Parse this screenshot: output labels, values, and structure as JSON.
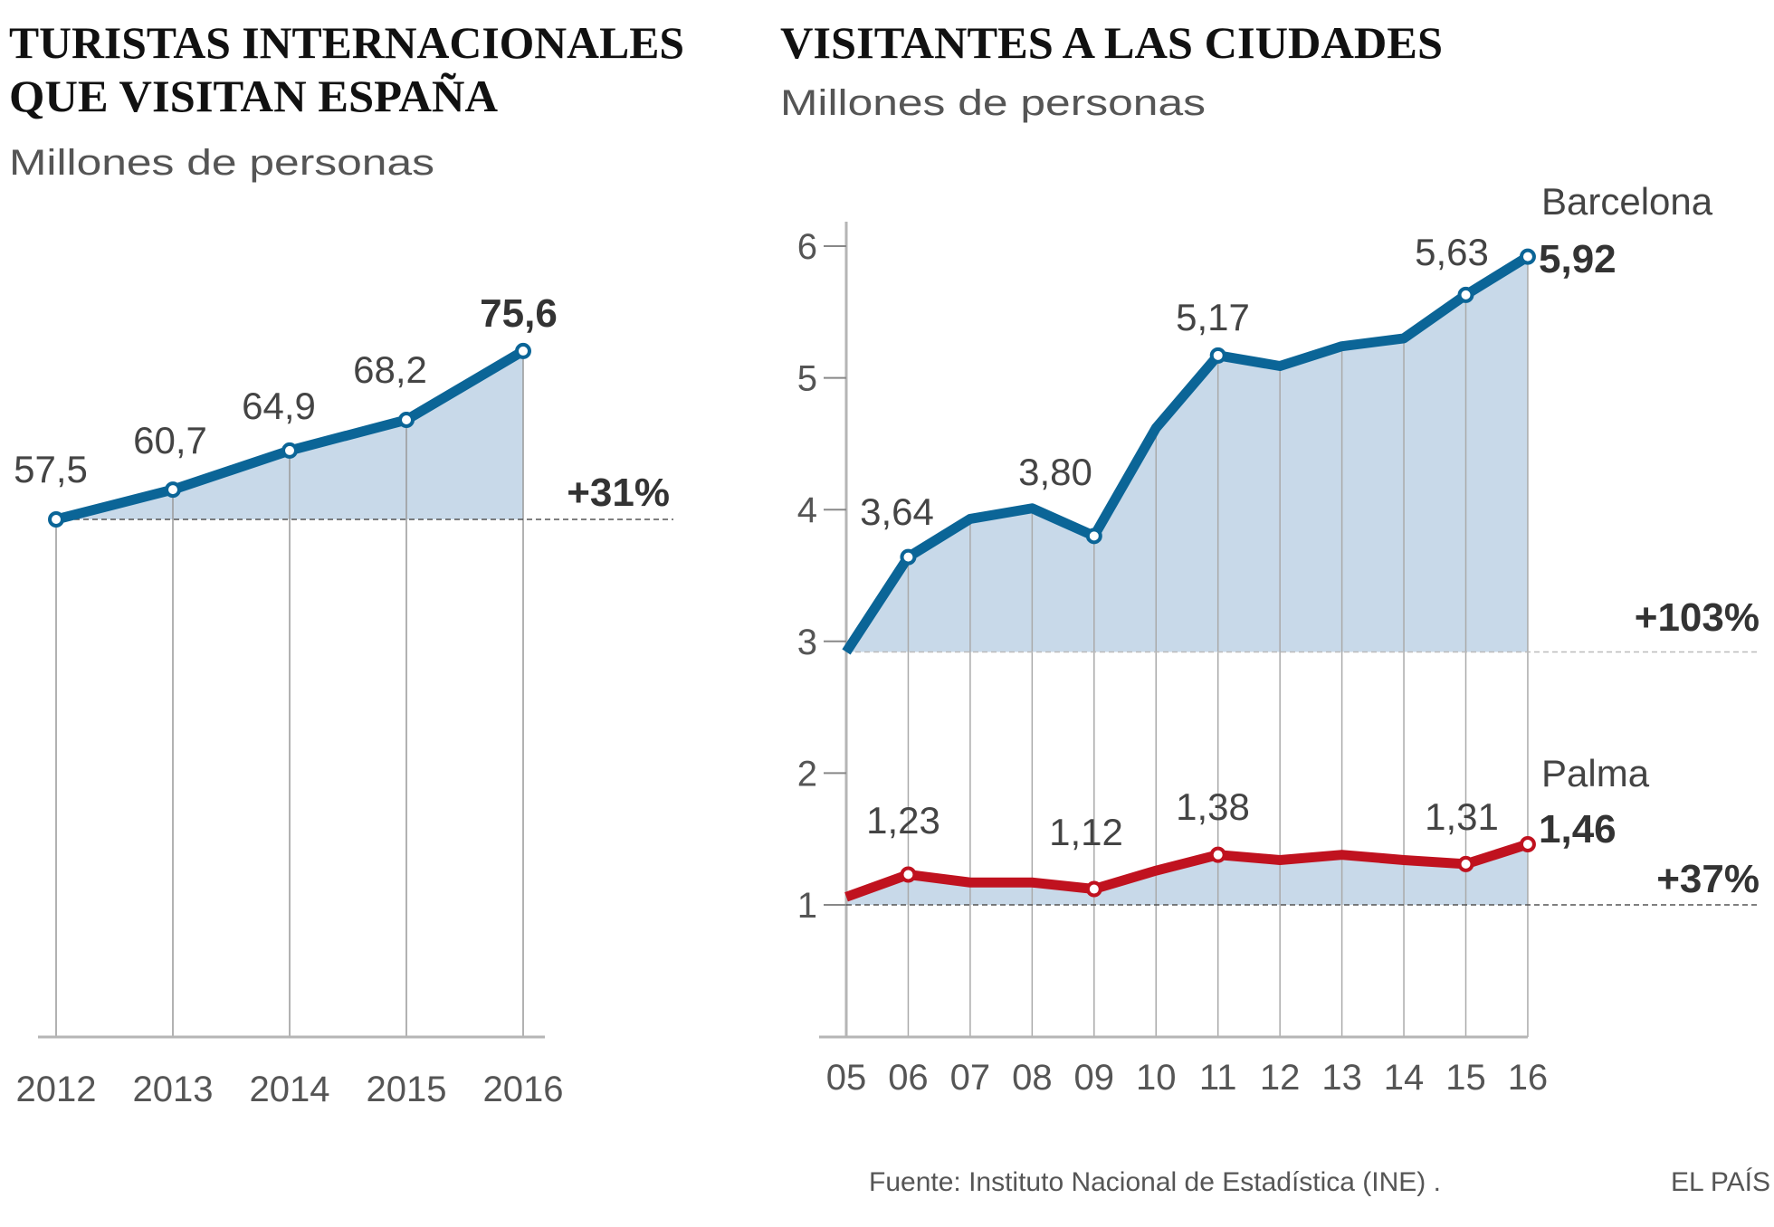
{
  "colors": {
    "spain": "#0b6597",
    "barcelona": "#0b6597",
    "palma": "#c0121f",
    "area": "#c8d9e9",
    "grid": "#b5b5b5"
  },
  "chart_data": [
    {
      "type": "area",
      "title": "TURISTAS INTERNACIONALES QUE VISITAN ESPAÑA",
      "title_lines": [
        "TURISTAS INTERNACIONALES",
        "QUE VISITAN ESPAÑA"
      ],
      "subtitle": "Millones de personas",
      "categories": [
        "2012",
        "2013",
        "2014",
        "2015",
        "2016"
      ],
      "series": [
        {
          "values": [
            57.5,
            60.7,
            64.9,
            68.2,
            75.6
          ],
          "labels": [
            "57,5",
            "60,7",
            "64,9",
            "68,2",
            "75,6"
          ]
        }
      ],
      "change_label": "+31%",
      "grid": false
    },
    {
      "type": "area",
      "title": "VISITANTES A LAS CIUDADES",
      "subtitle": "Millones de personas",
      "categories": [
        "05",
        "06",
        "07",
        "08",
        "09",
        "10",
        "11",
        "12",
        "13",
        "14",
        "15",
        "16"
      ],
      "yticks": [
        "6",
        "5",
        "4",
        "3",
        "2",
        "1"
      ],
      "ylim": [
        0.2,
        6.2
      ],
      "series": [
        {
          "name": "Barcelona",
          "values": [
            2.92,
            3.64,
            3.93,
            4.01,
            3.8,
            4.62,
            5.17,
            5.09,
            5.24,
            5.3,
            5.63,
            5.92
          ],
          "labels": {
            "1": "3,64",
            "4": "3,80",
            "6": "5,17",
            "10": "5,63",
            "11": "5,92"
          },
          "change_label": "+103%"
        },
        {
          "name": "Palma",
          "values": [
            1.06,
            1.23,
            1.17,
            1.17,
            1.12,
            1.26,
            1.38,
            1.34,
            1.38,
            1.34,
            1.31,
            1.46
          ],
          "labels": {
            "1": "1,23",
            "4": "1,12",
            "6": "1,38",
            "10": "1,31",
            "11": "1,46"
          },
          "change_label": "+37%"
        }
      ],
      "grid": false
    }
  ],
  "footer": {
    "source": "Fuente: Instituto Nacional de Estadística (INE) .",
    "brand": "EL PAÍS"
  }
}
